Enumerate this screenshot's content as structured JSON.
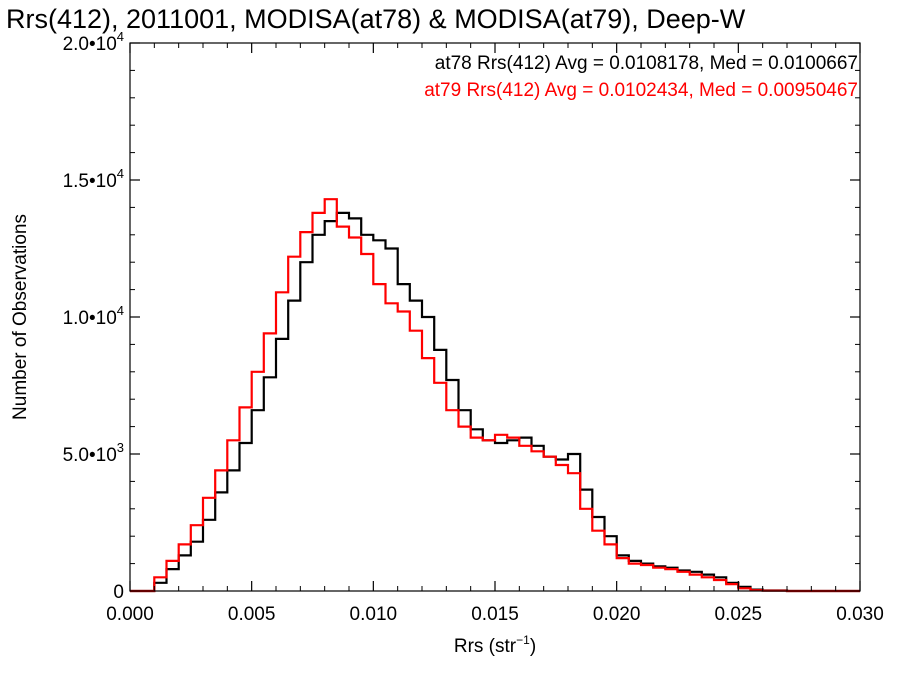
{
  "chart_data": {
    "type": "line",
    "title": "Rrs(412), 2011001, MODISA(at78) & MODISA(at79), Deep-W",
    "xlabel_main": "Rrs (str",
    "xlabel_exp": "−1",
    "xlabel_close": ")",
    "ylabel": "Number of Observations",
    "xlim": [
      0.0,
      0.03
    ],
    "ylim": [
      0,
      20000
    ],
    "x_ticks": [
      "0.000",
      "0.005",
      "0.010",
      "0.015",
      "0.020",
      "0.025",
      "0.030"
    ],
    "y_ticks": [
      {
        "value": 0,
        "mant": "0",
        "exp": ""
      },
      {
        "value": 5000,
        "mant": "5.0•10",
        "exp": "3"
      },
      {
        "value": 10000,
        "mant": "1.0•10",
        "exp": "4"
      },
      {
        "value": 15000,
        "mant": "1.5•10",
        "exp": "4"
      },
      {
        "value": 20000,
        "mant": "2.0•10",
        "exp": "4"
      }
    ],
    "annotations": [
      {
        "text": "at78 Rrs(412) Avg = 0.0108178, Med = 0.0100667",
        "color": "#000000"
      },
      {
        "text": "at79 Rrs(412) Avg = 0.0102434, Med = 0.00950467",
        "color": "#ff0000"
      }
    ],
    "series": [
      {
        "color": "#000000",
        "x": [
          0.0,
          0.001,
          0.0015,
          0.002,
          0.0025,
          0.003,
          0.0035,
          0.004,
          0.0045,
          0.005,
          0.0055,
          0.006,
          0.0065,
          0.007,
          0.0075,
          0.008,
          0.0085,
          0.009,
          0.0095,
          0.01,
          0.0105,
          0.011,
          0.0115,
          0.012,
          0.0125,
          0.013,
          0.0135,
          0.014,
          0.0145,
          0.015,
          0.0155,
          0.016,
          0.0165,
          0.017,
          0.0175,
          0.018,
          0.0185,
          0.019,
          0.0195,
          0.02,
          0.0205,
          0.021,
          0.0215,
          0.022,
          0.0225,
          0.023,
          0.0235,
          0.024,
          0.0245,
          0.025,
          0.0255,
          0.026,
          0.027,
          0.028,
          0.029,
          0.03
        ],
        "y": [
          0,
          300,
          800,
          1300,
          1800,
          2600,
          3600,
          4400,
          5400,
          6600,
          7800,
          9200,
          10600,
          12000,
          13000,
          13500,
          13800,
          13600,
          13000,
          12800,
          12500,
          11200,
          10600,
          10000,
          8800,
          7700,
          6600,
          5900,
          5500,
          5400,
          5500,
          5600,
          5300,
          4900,
          4800,
          5000,
          3700,
          2700,
          2000,
          1300,
          1100,
          1000,
          900,
          850,
          750,
          700,
          600,
          500,
          300,
          150,
          50,
          20,
          0,
          0,
          0,
          0
        ]
      },
      {
        "color": "#ff0000",
        "x": [
          0.0,
          0.001,
          0.0015,
          0.002,
          0.0025,
          0.003,
          0.0035,
          0.004,
          0.0045,
          0.005,
          0.0055,
          0.006,
          0.0065,
          0.007,
          0.0075,
          0.008,
          0.0085,
          0.009,
          0.0095,
          0.01,
          0.0105,
          0.011,
          0.0115,
          0.012,
          0.0125,
          0.013,
          0.0135,
          0.014,
          0.0145,
          0.015,
          0.0155,
          0.016,
          0.0165,
          0.017,
          0.0175,
          0.018,
          0.0185,
          0.019,
          0.0195,
          0.02,
          0.0205,
          0.021,
          0.0215,
          0.022,
          0.0225,
          0.023,
          0.0235,
          0.024,
          0.0245,
          0.025,
          0.0255,
          0.026,
          0.027,
          0.028,
          0.029,
          0.03
        ],
        "y": [
          0,
          500,
          1100,
          1700,
          2400,
          3400,
          4400,
          5500,
          6700,
          8000,
          9400,
          10900,
          12200,
          13100,
          13800,
          14300,
          13300,
          12900,
          12300,
          11200,
          10500,
          10200,
          9500,
          8500,
          7600,
          6600,
          6000,
          5600,
          5500,
          5700,
          5600,
          5300,
          5100,
          4900,
          4600,
          4300,
          3000,
          2200,
          1700,
          1200,
          1000,
          950,
          850,
          800,
          700,
          600,
          500,
          400,
          250,
          100,
          30,
          10,
          0,
          0,
          0,
          0
        ]
      }
    ]
  }
}
